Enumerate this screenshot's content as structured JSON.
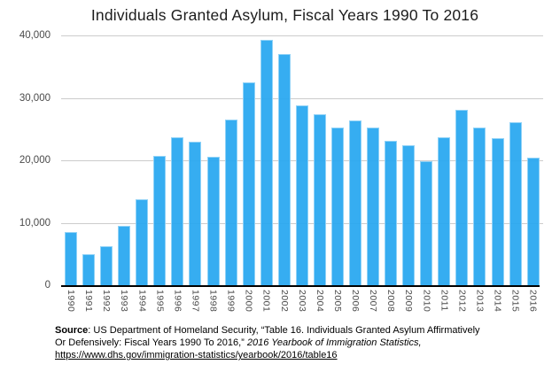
{
  "title": "Individuals Granted Asylum, Fiscal Years 1990 To 2016",
  "chart_data": {
    "type": "bar",
    "title": "Individuals Granted Asylum, Fiscal Years 1990 To 2016",
    "categories": [
      "1990",
      "1991",
      "1992",
      "1993",
      "1994",
      "1995",
      "1996",
      "1997",
      "1998",
      "1999",
      "2000",
      "2001",
      "2002",
      "2003",
      "2004",
      "2005",
      "2006",
      "2007",
      "2008",
      "2009",
      "2010",
      "2011",
      "2012",
      "2013",
      "2014",
      "2015",
      "2016"
    ],
    "values": [
      8472,
      5035,
      6307,
      9539,
      13799,
      20727,
      23669,
      22939,
      20505,
      26578,
      32532,
      39309,
      36959,
      28787,
      27392,
      25282,
      26404,
      25296,
      23100,
      22400,
      19850,
      23650,
      28150,
      25199,
      23533,
      26124,
      20455
    ],
    "xlabel": "",
    "ylabel": "",
    "ylim": [
      0,
      40000
    ],
    "yticks": [
      0,
      10000,
      20000,
      30000,
      40000
    ],
    "ytick_labels_top_to_bottom": [
      "40,000",
      "30,000",
      "20,000",
      "10,000",
      "0"
    ],
    "grid": "horizontal",
    "legend": "none",
    "bar_color": "#29a8f0",
    "bar_edge_color": "#bfe3fa",
    "grid_color": "#cccccc",
    "axis_color": "#000000",
    "tick_label_color": "#4a4a4a",
    "x_tick_rotation_deg": 90
  },
  "source": {
    "line1": {
      "bold": "Source",
      "rest": ": US Department of Homeland Security, “Table 16. Individuals Granted Asylum Affirmatively"
    },
    "line2": {
      "normal": "Or Defensively: Fiscal Years 1990 To 2016,” ",
      "italic": "2016 Yearbook of Immigration Statistics,"
    },
    "line3": {
      "link": "https://www.dhs.gov/immigration-statistics/yearbook/2016/table16"
    }
  }
}
